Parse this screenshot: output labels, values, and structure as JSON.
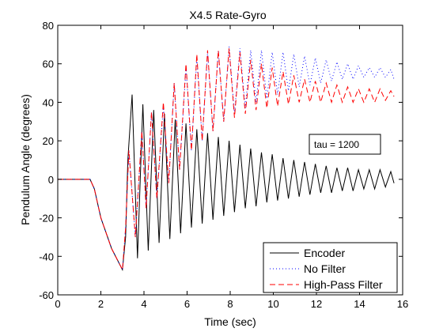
{
  "chart_data": {
    "type": "line",
    "title": "X4.5 Rate-Gyro",
    "xlabel": "Time (sec)",
    "ylabel": "Pendulum Angle (degrees)",
    "xlim": [
      0,
      16
    ],
    "ylim": [
      -60,
      80
    ],
    "xticks": [
      0,
      2,
      4,
      6,
      8,
      10,
      12,
      14,
      16
    ],
    "yticks": [
      -60,
      -40,
      -20,
      0,
      20,
      40,
      60,
      80
    ],
    "grid": false,
    "legend_position": "bottom-right",
    "annotation": "tau = 1200",
    "series": [
      {
        "name": "Encoder",
        "color": "#000000",
        "style": "solid",
        "points": [
          [
            0,
            0
          ],
          [
            1.5,
            0
          ],
          [
            1.7,
            -5
          ],
          [
            2.0,
            -20
          ],
          [
            2.5,
            -36
          ],
          [
            3.0,
            -47
          ],
          [
            3.15,
            -30
          ],
          [
            3.25,
            10
          ],
          [
            3.45,
            44
          ],
          [
            3.7,
            -41
          ],
          [
            3.95,
            39
          ],
          [
            4.2,
            -37
          ],
          [
            4.45,
            36
          ],
          [
            4.7,
            -33
          ],
          [
            4.95,
            34
          ],
          [
            5.2,
            -31
          ],
          [
            5.45,
            31
          ],
          [
            5.7,
            -28
          ],
          [
            5.95,
            29
          ],
          [
            6.2,
            -25
          ],
          [
            6.45,
            26
          ],
          [
            6.7,
            -23
          ],
          [
            6.95,
            24
          ],
          [
            7.2,
            -21
          ],
          [
            7.45,
            22
          ],
          [
            7.7,
            -19
          ],
          [
            7.95,
            20
          ],
          [
            8.2,
            -17
          ],
          [
            8.45,
            18
          ],
          [
            8.7,
            -15
          ],
          [
            8.95,
            16
          ],
          [
            9.2,
            -14
          ],
          [
            9.45,
            14
          ],
          [
            9.7,
            -12
          ],
          [
            9.95,
            13
          ],
          [
            10.2,
            -11
          ],
          [
            10.45,
            11
          ],
          [
            10.7,
            -10
          ],
          [
            10.95,
            10
          ],
          [
            11.2,
            -9
          ],
          [
            11.45,
            9
          ],
          [
            11.7,
            -8
          ],
          [
            11.95,
            8
          ],
          [
            12.2,
            -7
          ],
          [
            12.45,
            7
          ],
          [
            12.7,
            -7
          ],
          [
            12.95,
            6
          ],
          [
            13.2,
            -6
          ],
          [
            13.45,
            6
          ],
          [
            13.7,
            -6
          ],
          [
            13.95,
            5
          ],
          [
            14.2,
            -5
          ],
          [
            14.45,
            5
          ],
          [
            14.7,
            -5
          ],
          [
            14.95,
            5
          ],
          [
            15.2,
            -4
          ],
          [
            15.45,
            4
          ],
          [
            15.6,
            -2
          ]
        ]
      },
      {
        "name": "No Filter",
        "color": "#0000ff",
        "style": "dotted",
        "points": [
          [
            0,
            0
          ],
          [
            1.5,
            0
          ],
          [
            1.7,
            -5
          ],
          [
            2.0,
            -20
          ],
          [
            2.5,
            -36
          ],
          [
            3.0,
            -47
          ],
          [
            3.15,
            -25
          ],
          [
            3.3,
            15
          ],
          [
            3.6,
            -30
          ],
          [
            3.9,
            25
          ],
          [
            4.1,
            -15
          ],
          [
            4.35,
            35
          ],
          [
            4.6,
            -10
          ],
          [
            4.9,
            38
          ],
          [
            5.15,
            -2
          ],
          [
            5.4,
            50
          ],
          [
            5.65,
            5
          ],
          [
            5.95,
            58
          ],
          [
            6.2,
            15
          ],
          [
            6.45,
            63
          ],
          [
            6.7,
            20
          ],
          [
            6.95,
            66
          ],
          [
            7.2,
            25
          ],
          [
            7.45,
            67
          ],
          [
            7.7,
            30
          ],
          [
            7.95,
            69
          ],
          [
            8.2,
            34
          ],
          [
            8.45,
            68
          ],
          [
            8.7,
            37
          ],
          [
            8.95,
            67
          ],
          [
            9.2,
            40
          ],
          [
            9.45,
            67
          ],
          [
            9.7,
            42
          ],
          [
            9.95,
            66
          ],
          [
            10.2,
            44
          ],
          [
            10.45,
            66
          ],
          [
            10.7,
            46
          ],
          [
            10.95,
            65
          ],
          [
            11.2,
            48
          ],
          [
            11.45,
            64
          ],
          [
            11.7,
            49
          ],
          [
            11.95,
            63
          ],
          [
            12.2,
            50
          ],
          [
            12.45,
            62
          ],
          [
            12.7,
            51
          ],
          [
            12.95,
            61
          ],
          [
            13.2,
            52
          ],
          [
            13.45,
            60
          ],
          [
            13.7,
            52
          ],
          [
            13.95,
            59
          ],
          [
            14.2,
            53
          ],
          [
            14.45,
            58
          ],
          [
            14.7,
            53
          ],
          [
            14.95,
            58
          ],
          [
            15.2,
            53
          ],
          [
            15.45,
            57
          ],
          [
            15.6,
            52
          ]
        ]
      },
      {
        "name": "High-Pass Filter",
        "color": "#ff0000",
        "style": "dashed",
        "points": [
          [
            0,
            0
          ],
          [
            1.5,
            0
          ],
          [
            1.7,
            -5
          ],
          [
            2.0,
            -20
          ],
          [
            2.5,
            -36
          ],
          [
            3.0,
            -47
          ],
          [
            3.15,
            -25
          ],
          [
            3.3,
            15
          ],
          [
            3.6,
            -30
          ],
          [
            3.9,
            25
          ],
          [
            4.1,
            -15
          ],
          [
            4.35,
            35
          ],
          [
            4.6,
            -10
          ],
          [
            4.9,
            40
          ],
          [
            5.15,
            -2
          ],
          [
            5.4,
            50
          ],
          [
            5.65,
            5
          ],
          [
            5.95,
            60
          ],
          [
            6.2,
            15
          ],
          [
            6.45,
            65
          ],
          [
            6.7,
            20
          ],
          [
            6.95,
            67
          ],
          [
            7.2,
            25
          ],
          [
            7.45,
            67
          ],
          [
            7.7,
            30
          ],
          [
            7.95,
            68
          ],
          [
            8.2,
            32
          ],
          [
            8.45,
            66
          ],
          [
            8.7,
            34
          ],
          [
            8.95,
            62
          ],
          [
            9.2,
            36
          ],
          [
            9.45,
            60
          ],
          [
            9.7,
            37
          ],
          [
            9.95,
            58
          ],
          [
            10.2,
            38
          ],
          [
            10.45,
            56
          ],
          [
            10.7,
            39
          ],
          [
            10.95,
            54
          ],
          [
            11.2,
            40
          ],
          [
            11.45,
            52
          ],
          [
            11.7,
            40
          ],
          [
            11.95,
            51
          ],
          [
            12.2,
            40
          ],
          [
            12.45,
            50
          ],
          [
            12.7,
            40
          ],
          [
            12.95,
            49
          ],
          [
            13.2,
            40
          ],
          [
            13.45,
            48
          ],
          [
            13.7,
            40
          ],
          [
            13.95,
            47
          ],
          [
            14.2,
            40
          ],
          [
            14.45,
            47
          ],
          [
            14.7,
            40
          ],
          [
            14.95,
            47
          ],
          [
            15.2,
            41
          ],
          [
            15.45,
            46
          ],
          [
            15.6,
            43
          ]
        ]
      }
    ]
  }
}
